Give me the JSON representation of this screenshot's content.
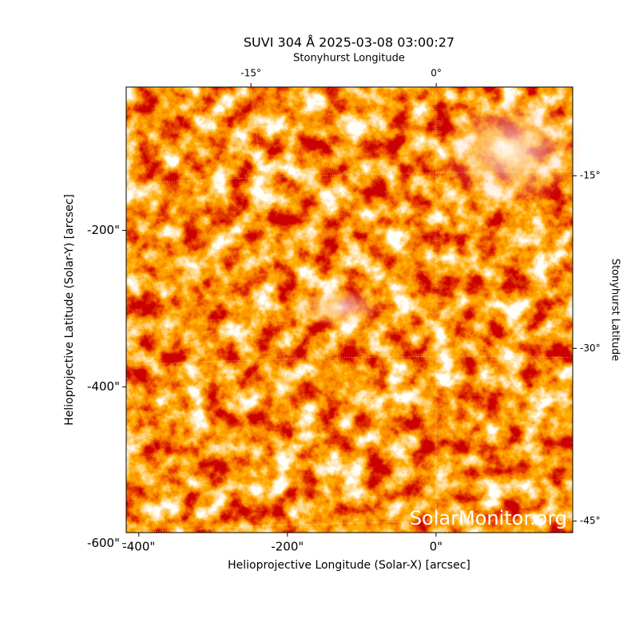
{
  "chart_data": {
    "type": "image",
    "title": "SUVI 304 Å 2025-03-08 03:00:27",
    "x_label": "Helioprojective Longitude (Solar-X) [arcsec]",
    "y_label": "Helioprojective Latitude (Solar-Y) [arcsec]",
    "xlim": [
      -417,
      184
    ],
    "ylim": [
      -586,
      -17
    ],
    "xticks": [
      {
        "value": -400,
        "label": "-400\""
      },
      {
        "value": -200,
        "label": "-200\""
      },
      {
        "value": 0,
        "label": "0\""
      }
    ],
    "yticks": [
      {
        "value": -200,
        "label": "-200\""
      },
      {
        "value": -400,
        "label": "-400\""
      },
      {
        "value": -600,
        "label": "-600\""
      }
    ],
    "top_axis": {
      "label": "Stonyhurst Longitude",
      "lim": [
        -25.1,
        11.05
      ],
      "ticks": [
        {
          "value": -15,
          "label": "-15°"
        },
        {
          "value": 0,
          "label": "0°"
        }
      ]
    },
    "right_axis": {
      "label": "Stonyhurst Latitude",
      "lim": [
        -46.0,
        -7.3
      ],
      "ticks": [
        {
          "value": -15,
          "label": "-15°"
        },
        {
          "value": -30,
          "label": "-30°"
        },
        {
          "value": -45,
          "label": "-45°"
        }
      ]
    },
    "watermark": "SolarMonitor.org"
  }
}
